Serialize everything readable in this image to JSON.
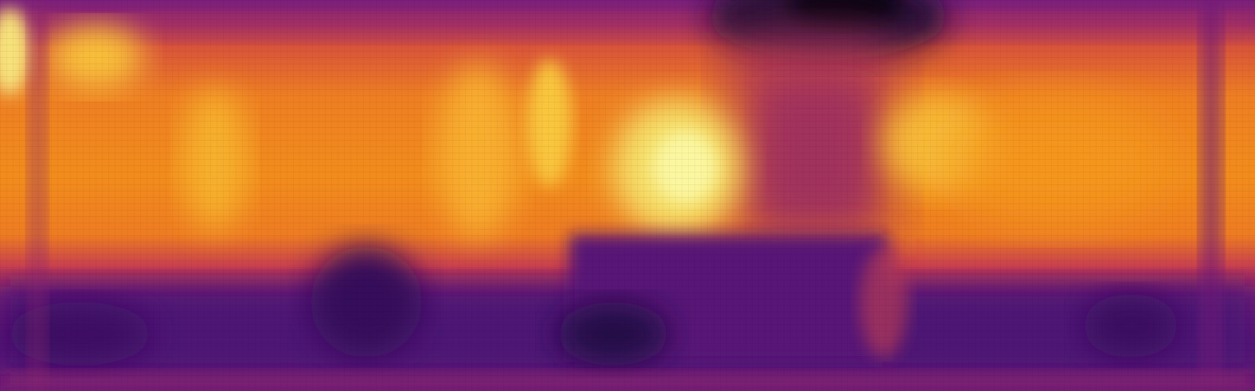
{
  "image": {
    "kind": "thermal heatmap",
    "colormap": "inferno",
    "palette": [
      "#000004",
      "#1b0c41",
      "#4a0c6b",
      "#781c6d",
      "#a52c60",
      "#cf4446",
      "#ed6925",
      "#fb9b06",
      "#f7d13d",
      "#fcffa4"
    ]
  }
}
